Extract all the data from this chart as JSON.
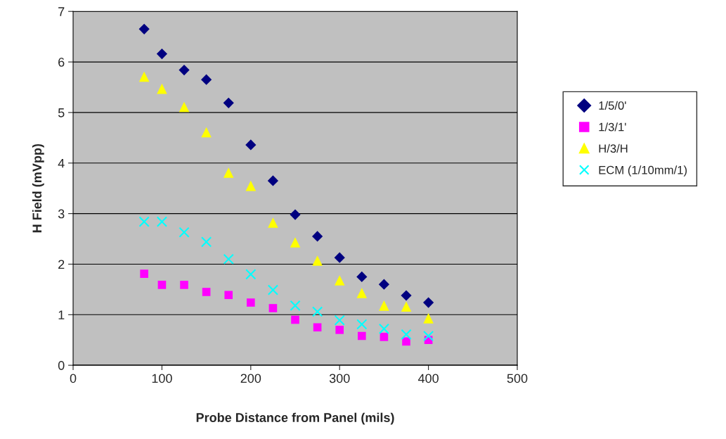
{
  "chart_data": {
    "type": "scatter",
    "xlabel": "Probe Distance from Panel (mils)",
    "ylabel": "H Field (mVpp)",
    "x": [
      80,
      100,
      125,
      150,
      175,
      200,
      225,
      250,
      275,
      300,
      325,
      350,
      375,
      400
    ],
    "series": [
      {
        "name": "1/5/0'",
        "color": "#000080",
        "marker": "diamond",
        "values": [
          6.65,
          6.16,
          5.84,
          5.65,
          5.19,
          4.36,
          3.65,
          2.98,
          2.55,
          2.13,
          1.75,
          1.6,
          1.38,
          1.24
        ]
      },
      {
        "name": "1/3/1'",
        "color": "#ff00ff",
        "marker": "square",
        "values": [
          1.81,
          1.59,
          1.59,
          1.45,
          1.39,
          1.24,
          1.13,
          0.9,
          0.75,
          0.7,
          0.58,
          0.56,
          0.47,
          0.5
        ]
      },
      {
        "name": "H/3/H",
        "color": "#ffff00",
        "marker": "triangle",
        "values": [
          5.71,
          5.47,
          5.11,
          4.61,
          3.81,
          3.55,
          2.82,
          2.43,
          2.07,
          1.68,
          1.43,
          1.18,
          1.16,
          0.93
        ]
      },
      {
        "name": "ECM (1/10mm/1)",
        "color": "#00ffff",
        "marker": "cross",
        "values": [
          2.84,
          2.84,
          2.63,
          2.44,
          2.1,
          1.8,
          1.49,
          1.18,
          1.06,
          0.89,
          0.81,
          0.72,
          0.61,
          0.58
        ]
      }
    ],
    "xlim": [
      0,
      500
    ],
    "xticks": [
      0,
      100,
      200,
      300,
      400,
      500
    ],
    "ylim": [
      0,
      7
    ],
    "yticks": [
      0,
      1,
      2,
      3,
      4,
      5,
      6,
      7
    ],
    "grid": "y",
    "legend": "right"
  }
}
